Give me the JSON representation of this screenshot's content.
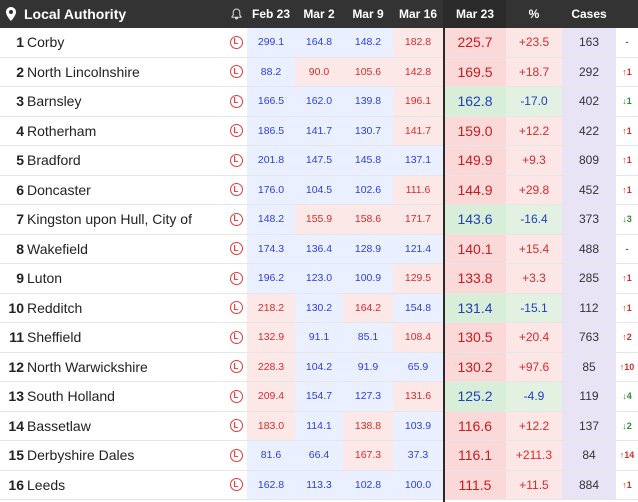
{
  "header": {
    "title": "Local Authority",
    "weeks": [
      "Feb 23",
      "Mar 2",
      "Mar 9",
      "Mar 16"
    ],
    "rate": "Mar 23",
    "pct": "%",
    "cases": "Cases"
  },
  "lockdown_symbol": "L",
  "rows": [
    {
      "rank": "1",
      "name": "Corby",
      "w": [
        "299.1",
        "164.8",
        "148.2",
        "182.8"
      ],
      "rate": "225.7",
      "pct": "+23.5",
      "cases": "163",
      "trend": "-",
      "trend_dir": "flat"
    },
    {
      "rank": "2",
      "name": "North Lincolnshire",
      "w": [
        "88.2",
        "90.0",
        "105.6",
        "142.8"
      ],
      "rate": "169.5",
      "pct": "+18.7",
      "cases": "292",
      "trend": "↑1",
      "trend_dir": "up"
    },
    {
      "rank": "3",
      "name": "Barnsley",
      "w": [
        "166.5",
        "162.0",
        "139.8",
        "196.1"
      ],
      "rate": "162.8",
      "pct": "-17.0",
      "cases": "402",
      "trend": "↓1",
      "trend_dir": "down"
    },
    {
      "rank": "4",
      "name": "Rotherham",
      "w": [
        "186.5",
        "141.7",
        "130.7",
        "141.7"
      ],
      "rate": "159.0",
      "pct": "+12.2",
      "cases": "422",
      "trend": "↑1",
      "trend_dir": "up"
    },
    {
      "rank": "5",
      "name": "Bradford",
      "w": [
        "201.8",
        "147.5",
        "145.8",
        "137.1"
      ],
      "rate": "149.9",
      "pct": "+9.3",
      "cases": "809",
      "trend": "↑1",
      "trend_dir": "up"
    },
    {
      "rank": "6",
      "name": "Doncaster",
      "w": [
        "176.0",
        "104.5",
        "102.6",
        "111.6"
      ],
      "rate": "144.9",
      "pct": "+29.8",
      "cases": "452",
      "trend": "↑1",
      "trend_dir": "up"
    },
    {
      "rank": "7",
      "name": "Kingston upon Hull, City of",
      "w": [
        "148.2",
        "155.9",
        "158.6",
        "171.7"
      ],
      "rate": "143.6",
      "pct": "-16.4",
      "cases": "373",
      "trend": "↓3",
      "trend_dir": "down"
    },
    {
      "rank": "8",
      "name": "Wakefield",
      "w": [
        "174.3",
        "136.4",
        "128.9",
        "121.4"
      ],
      "rate": "140.1",
      "pct": "+15.4",
      "cases": "488",
      "trend": "-",
      "trend_dir": "flat"
    },
    {
      "rank": "9",
      "name": "Luton",
      "w": [
        "196.2",
        "123.0",
        "100.9",
        "129.5"
      ],
      "rate": "133.8",
      "pct": "+3.3",
      "cases": "285",
      "trend": "↑1",
      "trend_dir": "up"
    },
    {
      "rank": "10",
      "name": "Redditch",
      "w": [
        "218.2",
        "130.2",
        "164.2",
        "154.8"
      ],
      "rate": "131.4",
      "pct": "-15.1",
      "cases": "112",
      "trend": "↑1",
      "trend_dir": "up"
    },
    {
      "rank": "11",
      "name": "Sheffield",
      "w": [
        "132.9",
        "91.1",
        "85.1",
        "108.4"
      ],
      "rate": "130.5",
      "pct": "+20.4",
      "cases": "763",
      "trend": "↑2",
      "trend_dir": "up"
    },
    {
      "rank": "12",
      "name": "North Warwickshire",
      "w": [
        "228.3",
        "104.2",
        "91.9",
        "65.9"
      ],
      "rate": "130.2",
      "pct": "+97.6",
      "cases": "85",
      "trend": "↑10",
      "trend_dir": "up"
    },
    {
      "rank": "13",
      "name": "South Holland",
      "w": [
        "209.4",
        "154.7",
        "127.3",
        "131.6"
      ],
      "rate": "125.2",
      "pct": "-4.9",
      "cases": "119",
      "trend": "↓4",
      "trend_dir": "down"
    },
    {
      "rank": "14",
      "name": "Bassetlaw",
      "w": [
        "183.0",
        "114.1",
        "138.8",
        "103.9"
      ],
      "rate": "116.6",
      "pct": "+12.2",
      "cases": "137",
      "trend": "↓2",
      "trend_dir": "down"
    },
    {
      "rank": "15",
      "name": "Derbyshire Dales",
      "w": [
        "81.6",
        "66.4",
        "167.3",
        "37.3"
      ],
      "rate": "116.1",
      "pct": "+211.3",
      "cases": "84",
      "trend": "↑14",
      "trend_dir": "up"
    },
    {
      "rank": "16",
      "name": "Leeds",
      "w": [
        "162.8",
        "113.3",
        "102.8",
        "100.0"
      ],
      "rate": "111.5",
      "pct": "+11.5",
      "cases": "884",
      "trend": "↑1",
      "trend_dir": "up"
    }
  ],
  "week_styles": [
    [
      "blue",
      "blue",
      "blue",
      "red"
    ],
    [
      "blue",
      "red",
      "red",
      "red"
    ],
    [
      "blue",
      "blue",
      "blue",
      "red"
    ],
    [
      "blue",
      "blue",
      "blue",
      "red"
    ],
    [
      "blue",
      "blue",
      "blue",
      "blue"
    ],
    [
      "blue",
      "blue",
      "blue",
      "red"
    ],
    [
      "blue",
      "red",
      "red",
      "red"
    ],
    [
      "blue",
      "blue",
      "blue",
      "blue"
    ],
    [
      "blue",
      "blue",
      "blue",
      "red"
    ],
    [
      "red",
      "blue",
      "red",
      "blue"
    ],
    [
      "red",
      "blue",
      "blue",
      "red"
    ],
    [
      "red",
      "blue",
      "blue",
      "blue"
    ],
    [
      "red",
      "blue",
      "blue",
      "red"
    ],
    [
      "red",
      "blue",
      "red",
      "blue"
    ],
    [
      "blue",
      "blue",
      "red",
      "blue"
    ],
    [
      "blue",
      "blue",
      "blue",
      "blue"
    ]
  ],
  "colors": {
    "header_bg": "#333333",
    "up": "#d62c2c",
    "down": "#1f3fbf",
    "trend_down": "#2e8b2e"
  }
}
